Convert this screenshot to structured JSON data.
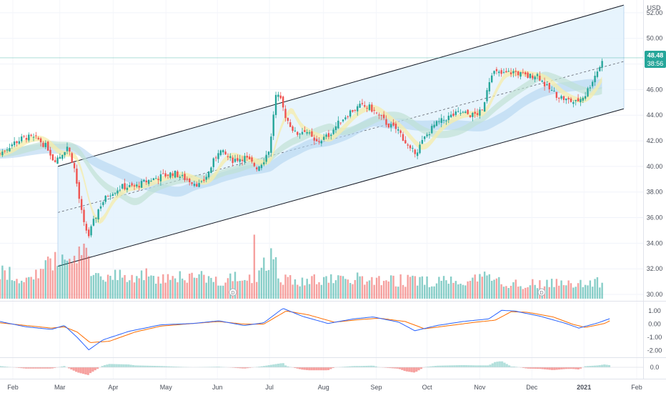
{
  "chart_data": {
    "type": "candlestick",
    "currency": "USD",
    "price_axis": {
      "ticks": [
        "52.00",
        "50.00",
        "48.00",
        "46.00",
        "44.00",
        "42.00",
        "40.00",
        "38.00",
        "36.00",
        "34.00",
        "32.00",
        "30.00"
      ],
      "range": [
        29.5,
        53
      ]
    },
    "last_price": "48.48",
    "countdown": "38:56",
    "macd_axis": {
      "ticks": [
        "1.00",
        "0.00",
        "-1.00",
        "-2.00"
      ],
      "range": [
        -2.3,
        1.5
      ]
    },
    "hist_axis": {
      "ticks": [
        "0.0"
      ]
    },
    "x_labels": [
      {
        "label": "Feb",
        "t": 0.02
      },
      {
        "label": "Mar",
        "t": 0.093
      },
      {
        "label": "Apr",
        "t": 0.176
      },
      {
        "label": "May",
        "t": 0.258
      },
      {
        "label": "Jun",
        "t": 0.338
      },
      {
        "label": "Jul",
        "t": 0.419
      },
      {
        "label": "Aug",
        "t": 0.503
      },
      {
        "label": "Sep",
        "t": 0.585
      },
      {
        "label": "Oct",
        "t": 0.664
      },
      {
        "label": "Nov",
        "t": 0.746
      },
      {
        "label": "Dec",
        "t": 0.827
      },
      {
        "label": "2021",
        "t": 0.908
      },
      {
        "label": "Feb",
        "t": 0.99
      }
    ],
    "close_path": [
      [
        0.0,
        41.0
      ],
      [
        0.02,
        41.8
      ],
      [
        0.04,
        42.3
      ],
      [
        0.06,
        42.1
      ],
      [
        0.075,
        41.4
      ],
      [
        0.083,
        40.5
      ],
      [
        0.093,
        40.8
      ],
      [
        0.105,
        41.6
      ],
      [
        0.115,
        40.0
      ],
      [
        0.123,
        37.5
      ],
      [
        0.13,
        35.5
      ],
      [
        0.138,
        34.6
      ],
      [
        0.145,
        35.6
      ],
      [
        0.155,
        36.9
      ],
      [
        0.17,
        37.9
      ],
      [
        0.19,
        38.4
      ],
      [
        0.21,
        38.4
      ],
      [
        0.23,
        38.9
      ],
      [
        0.25,
        39.2
      ],
      [
        0.27,
        39.5
      ],
      [
        0.285,
        39.1
      ],
      [
        0.3,
        38.8
      ],
      [
        0.312,
        38.5
      ],
      [
        0.325,
        39.6
      ],
      [
        0.34,
        41.3
      ],
      [
        0.36,
        40.5
      ],
      [
        0.38,
        40.7
      ],
      [
        0.4,
        39.9
      ],
      [
        0.41,
        40.5
      ],
      [
        0.42,
        41.5
      ],
      [
        0.428,
        45.5
      ],
      [
        0.435,
        45.3
      ],
      [
        0.445,
        43.8
      ],
      [
        0.46,
        42.5
      ],
      [
        0.475,
        42.9
      ],
      [
        0.49,
        41.8
      ],
      [
        0.51,
        42.4
      ],
      [
        0.53,
        43.6
      ],
      [
        0.545,
        44.3
      ],
      [
        0.56,
        44.7
      ],
      [
        0.575,
        44.6
      ],
      [
        0.59,
        43.9
      ],
      [
        0.605,
        43.2
      ],
      [
        0.62,
        42.8
      ],
      [
        0.638,
        41.2
      ],
      [
        0.648,
        41.2
      ],
      [
        0.66,
        42.2
      ],
      [
        0.675,
        43.2
      ],
      [
        0.695,
        43.8
      ],
      [
        0.715,
        44.2
      ],
      [
        0.735,
        44.0
      ],
      [
        0.75,
        44.3
      ],
      [
        0.758,
        46.3
      ],
      [
        0.765,
        47.4
      ],
      [
        0.78,
        47.2
      ],
      [
        0.8,
        47.4
      ],
      [
        0.82,
        47.0
      ],
      [
        0.835,
        47.2
      ],
      [
        0.85,
        46.2
      ],
      [
        0.865,
        45.6
      ],
      [
        0.88,
        45.2
      ],
      [
        0.895,
        45.0
      ],
      [
        0.91,
        45.6
      ],
      [
        0.92,
        46.6
      ],
      [
        0.93,
        47.6
      ],
      [
        0.94,
        48.48
      ]
    ],
    "volume_profile": [
      [
        0.0,
        0.55
      ],
      [
        0.03,
        0.45
      ],
      [
        0.06,
        0.48
      ],
      [
        0.08,
        0.75
      ],
      [
        0.1,
        0.85
      ],
      [
        0.12,
        1.0
      ],
      [
        0.14,
        0.7
      ],
      [
        0.16,
        0.5
      ],
      [
        0.2,
        0.45
      ],
      [
        0.25,
        0.48
      ],
      [
        0.3,
        0.45
      ],
      [
        0.35,
        0.4
      ],
      [
        0.4,
        0.45
      ],
      [
        0.42,
        0.9
      ],
      [
        0.44,
        0.4
      ],
      [
        0.5,
        0.38
      ],
      [
        0.55,
        0.4
      ],
      [
        0.6,
        0.4
      ],
      [
        0.65,
        0.35
      ],
      [
        0.7,
        0.38
      ],
      [
        0.75,
        0.45
      ],
      [
        0.8,
        0.3
      ],
      [
        0.85,
        0.3
      ],
      [
        0.9,
        0.35
      ],
      [
        0.94,
        0.32
      ]
    ],
    "macd_path": [
      [
        0.0,
        0.2
      ],
      [
        0.04,
        -0.2
      ],
      [
        0.08,
        -0.4
      ],
      [
        0.1,
        -0.1
      ],
      [
        0.12,
        -1.0
      ],
      [
        0.138,
        -1.95
      ],
      [
        0.16,
        -1.2
      ],
      [
        0.2,
        -0.55
      ],
      [
        0.25,
        -0.05
      ],
      [
        0.3,
        0.05
      ],
      [
        0.34,
        0.25
      ],
      [
        0.38,
        -0.1
      ],
      [
        0.41,
        0.1
      ],
      [
        0.44,
        1.2
      ],
      [
        0.47,
        0.6
      ],
      [
        0.51,
        0.05
      ],
      [
        0.55,
        0.4
      ],
      [
        0.58,
        0.55
      ],
      [
        0.62,
        0.15
      ],
      [
        0.645,
        -0.5
      ],
      [
        0.68,
        -0.1
      ],
      [
        0.72,
        0.2
      ],
      [
        0.76,
        0.4
      ],
      [
        0.78,
        1.05
      ],
      [
        0.8,
        1.0
      ],
      [
        0.84,
        0.6
      ],
      [
        0.88,
        0.05
      ],
      [
        0.9,
        -0.3
      ],
      [
        0.93,
        0.1
      ],
      [
        0.95,
        0.45
      ]
    ],
    "signal_path": [
      [
        0.0,
        0.1
      ],
      [
        0.04,
        -0.1
      ],
      [
        0.08,
        -0.3
      ],
      [
        0.1,
        -0.2
      ],
      [
        0.12,
        -0.6
      ],
      [
        0.14,
        -1.4
      ],
      [
        0.17,
        -1.3
      ],
      [
        0.21,
        -0.6
      ],
      [
        0.25,
        -0.15
      ],
      [
        0.3,
        0.05
      ],
      [
        0.34,
        0.2
      ],
      [
        0.38,
        0.0
      ],
      [
        0.41,
        0.0
      ],
      [
        0.445,
        1.0
      ],
      [
        0.48,
        0.7
      ],
      [
        0.52,
        0.15
      ],
      [
        0.56,
        0.35
      ],
      [
        0.59,
        0.45
      ],
      [
        0.63,
        0.2
      ],
      [
        0.66,
        -0.35
      ],
      [
        0.7,
        -0.1
      ],
      [
        0.74,
        0.15
      ],
      [
        0.77,
        0.3
      ],
      [
        0.795,
        0.95
      ],
      [
        0.82,
        0.9
      ],
      [
        0.86,
        0.55
      ],
      [
        0.89,
        0.0
      ],
      [
        0.91,
        -0.25
      ],
      [
        0.94,
        0.05
      ],
      [
        0.95,
        0.3
      ]
    ],
    "channel": {
      "upper": [
        [
          0.09,
          40.0
        ],
        [
          0.97,
          52.6
        ]
      ],
      "mid": [
        [
          0.09,
          36.4
        ],
        [
          0.97,
          48.2
        ]
      ],
      "lower": [
        [
          0.09,
          32.2
        ],
        [
          0.97,
          44.5
        ]
      ]
    },
    "colors": {
      "up": "#26a69a",
      "down": "#ef5350",
      "macd": "#2962ff",
      "signal": "#ff6d00",
      "band_blue": "#b3d4f0",
      "band_green": "#bfe0d2",
      "band_yellow": "#f5ecaa",
      "channel_fill": "#e3f2fd",
      "last_price_bg": "#26a69a"
    }
  }
}
